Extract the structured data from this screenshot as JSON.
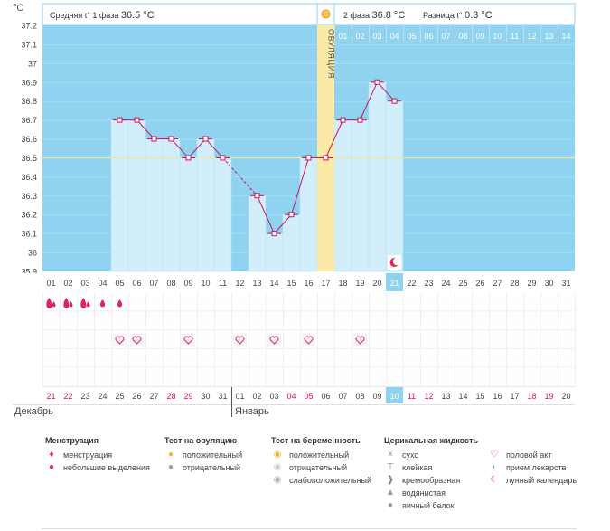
{
  "header": {
    "unit": "°C",
    "phase1_label": "Средняя t° 1 фаза",
    "phase1_value": "36.5 °C",
    "phase2_label": "2 фаза",
    "phase2_value": "36.8 °C",
    "diff_label": "Разница t°",
    "diff_value": "0.3 °C",
    "ovulation_label": "ОВУЛЯЦИЯ"
  },
  "chart_data": {
    "type": "line",
    "ylim": [
      35.9,
      37.2
    ],
    "yticks": [
      "37.2",
      "37.1",
      "37",
      "36.9",
      "36.8",
      "36.7",
      "36.6",
      "36.5",
      "36.4",
      "36.3",
      "36.2",
      "36.1",
      "36",
      "35.9"
    ],
    "cycle_days": [
      "01",
      "02",
      "03",
      "04",
      "05",
      "06",
      "07",
      "08",
      "09",
      "10",
      "11",
      "12",
      "13",
      "14",
      "15",
      "16",
      "17",
      "18",
      "19",
      "20",
      "21",
      "22",
      "23",
      "24",
      "25",
      "26",
      "27",
      "28",
      "29",
      "30",
      "31"
    ],
    "phase2_days": [
      "01",
      "02",
      "03",
      "04",
      "05",
      "06",
      "07",
      "08",
      "09",
      "10",
      "11",
      "12",
      "13",
      "14"
    ],
    "series": [
      {
        "values": [
          null,
          null,
          null,
          null,
          36.7,
          36.7,
          36.6,
          36.6,
          36.5,
          36.6,
          36.5,
          null,
          36.3,
          36.1,
          36.2,
          36.5,
          36.5,
          36.7,
          36.7,
          36.9,
          36.8,
          null,
          null,
          null,
          null,
          null,
          null,
          null,
          null,
          null,
          null
        ]
      }
    ],
    "coverline": 36.5,
    "ovulation_day": 17,
    "today_day": 21,
    "menstruation": [
      "big",
      "big",
      "big",
      "small",
      "small",
      null,
      null,
      null,
      null,
      null,
      null,
      null,
      null,
      null,
      null,
      null,
      null,
      null,
      null,
      null,
      null,
      null,
      null,
      null,
      null,
      null,
      null,
      null,
      null,
      null,
      null
    ],
    "intercourse_days": [
      5,
      6,
      9,
      12,
      14,
      16,
      19
    ],
    "dates": [
      "21",
      "22",
      "23",
      "24",
      "25",
      "26",
      "27",
      "28",
      "29",
      "30",
      "31",
      "01",
      "02",
      "03",
      "04",
      "05",
      "06",
      "07",
      "08",
      "09",
      "10",
      "11",
      "12",
      "13",
      "14",
      "15",
      "16",
      "17",
      "18",
      "19",
      "20"
    ],
    "weekend_idx": [
      0,
      1,
      7,
      8,
      14,
      15,
      21,
      22,
      28,
      29
    ],
    "month_left": "Декабрь",
    "month_right": "Январь"
  },
  "legend": {
    "groups": [
      {
        "title": "Менструация",
        "items": [
          {
            "icon": "drop-big-icon",
            "label": "менструация"
          },
          {
            "icon": "drop-small-icon",
            "label": "небольшие выделения"
          }
        ]
      },
      {
        "title": "Тест на овуляцию",
        "items": [
          {
            "icon": "test-positive-icon",
            "label": "положительный"
          },
          {
            "icon": "test-negative-icon",
            "label": "отрицательный"
          }
        ]
      },
      {
        "title": "Тест на беременность",
        "items": [
          {
            "icon": "preg-positive-icon",
            "label": "положительный"
          },
          {
            "icon": "preg-negative-icon",
            "label": "отрицательный"
          },
          {
            "icon": "preg-weak-icon",
            "label": "слабоположительный"
          }
        ]
      },
      {
        "title": "Церикальная жидкость",
        "items": [
          {
            "icon": "dry-icon",
            "label": "сухо"
          },
          {
            "icon": "sticky-icon",
            "label": "клейкая"
          },
          {
            "icon": "creamy-icon",
            "label": "кремообразная"
          },
          {
            "icon": "watery-icon",
            "label": "водянистая"
          },
          {
            "icon": "eggwhite-icon",
            "label": "яичный белок"
          }
        ]
      },
      {
        "title": "",
        "items": [
          {
            "icon": "heart-icon",
            "label": "половой акт"
          },
          {
            "icon": "pill-icon",
            "label": "прием лекарств"
          },
          {
            "icon": "moon-icon",
            "label": "лунный календарь"
          }
        ]
      }
    ]
  },
  "colors": {
    "bg_blue": "#8fd3f0",
    "bar": "#d3eefb",
    "line": "#c8145a",
    "ovulation": "#fbe9a6",
    "coverline": "#f5e58a",
    "weekend": "#d9134e"
  }
}
